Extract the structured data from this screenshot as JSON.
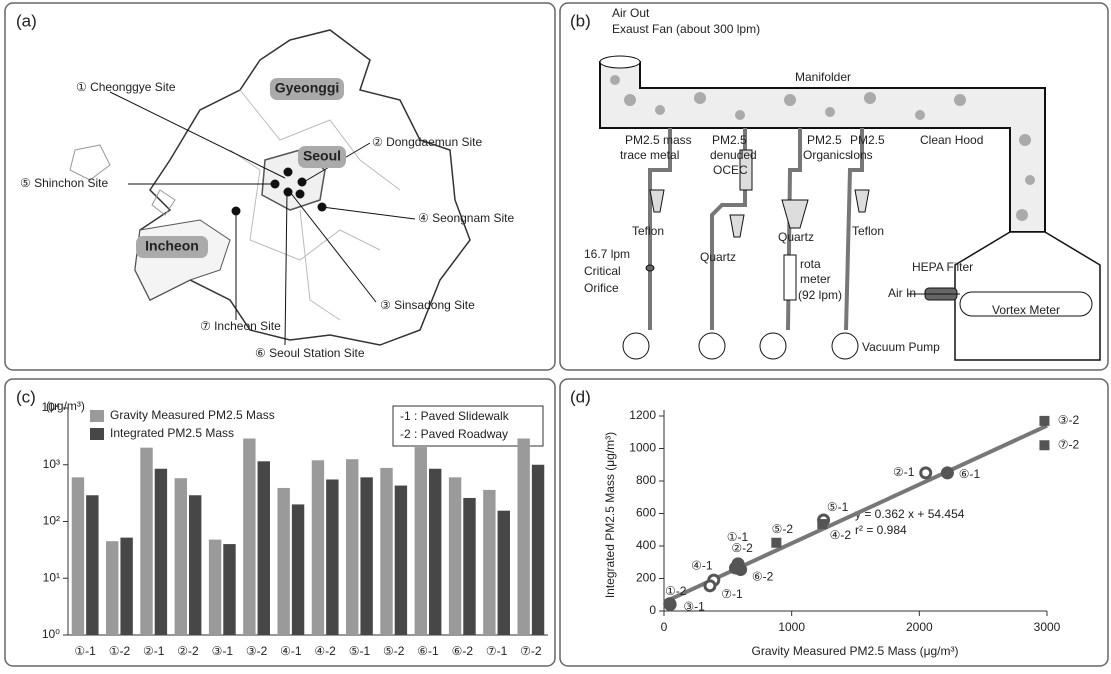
{
  "panel_labels": [
    "(a)",
    "(b)",
    "(c)",
    "(d)"
  ],
  "map": {
    "regions": [
      "Gyeonggi",
      "Seoul",
      "Incheon"
    ],
    "sites": [
      "① Cheonggye Site",
      "② Dongdaemun Site",
      "③ Sinsadong Site",
      "④ Seongnam Site",
      "⑤ Shinchon Site",
      "⑥ Seoul Station Site",
      "⑦ Incheon Site"
    ]
  },
  "setup": {
    "labels": [
      "Air Out",
      "Exaust Fan (about 300 lpm)",
      "Manifolder",
      "PM2.5 mass",
      "trace metal",
      "PM2.5",
      "denuded",
      "OCEC",
      "PM2.5",
      "Organics",
      "PM2.5",
      "Ions",
      "Clean Hood",
      "Teflon",
      "Quartz",
      "Quartz",
      "Teflon",
      "16.7 lpm",
      "Critical",
      "Orifice",
      "rota",
      "meter",
      "(92 lpm)",
      "HEPA Filter",
      "Air In",
      "Vortex Meter",
      "Vacuum Pump"
    ]
  },
  "chart_data": [
    {
      "type": "bar",
      "y_unit_label": "(μg/m³)",
      "categories": [
        "①-1",
        "①-2",
        "②-1",
        "②-2",
        "③-1",
        "③-2",
        "④-1",
        "④-2",
        "⑤-1",
        "⑤-2",
        "⑥-1",
        "⑥-2",
        "⑦-1",
        "⑦-2"
      ],
      "series": [
        {
          "name": "Gravity Measured PM2.5 Mass",
          "color": "#9a9a9a",
          "values": [
            600,
            45,
            2000,
            580,
            48,
            2900,
            390,
            1200,
            1250,
            880,
            2050,
            600,
            360,
            2900
          ]
        },
        {
          "name": "Integrated PM2.5 Mass",
          "color": "#474747",
          "values": [
            290,
            52,
            850,
            290,
            40,
            1150,
            200,
            550,
            600,
            430,
            850,
            260,
            155,
            1000
          ]
        }
      ],
      "log_scale": true,
      "ylim": [
        1,
        10000
      ],
      "yticks": [
        {
          "value": 1,
          "label": "10⁰"
        },
        {
          "value": 10,
          "label": "10¹"
        },
        {
          "value": 100,
          "label": "10²"
        },
        {
          "value": 1000,
          "label": "10³"
        },
        {
          "value": 10000,
          "label": "10⁴"
        }
      ],
      "annotations": [
        "-1 : Paved Slidewalk",
        "-2 : Paved Roadway"
      ]
    },
    {
      "type": "scatter",
      "xlabel": "Gravity Measured PM2.5 Mass (μg/m³)",
      "ylabel": "Integrated PM2.5 Mass (μg/m³)",
      "x": [
        45,
        48,
        390,
        360,
        560,
        580,
        600,
        880,
        1250,
        1240,
        2050,
        2220,
        2980,
        2980
      ],
      "series": [
        {
          "color": "#555555",
          "values": [
            45,
            40,
            190,
            155,
            265,
            290,
            255,
            420,
            560,
            535,
            850,
            850,
            1170,
            1020
          ],
          "markers": [
            "filled",
            "filled",
            "open",
            "open",
            "filled",
            "filled",
            "filled",
            "square",
            "open",
            "square",
            "open",
            "filled",
            "square",
            "square"
          ],
          "point_labels": [
            "①-2",
            "③-1",
            "④-1",
            "⑦-1",
            "①-1",
            "②-2",
            "⑥-2",
            "⑤-2",
            "⑤-1",
            "④-2",
            "②-1",
            "⑥-1",
            "③-2",
            "⑦-2"
          ]
        }
      ],
      "fit": {
        "slope": 0.362,
        "intercept": 54.454,
        "color": "#777777"
      },
      "annotations": [
        "y = 0.362 x + 54.454",
        "r² = 0.984"
      ],
      "xlim": [
        0,
        3000
      ],
      "xticks": [
        0,
        1000,
        2000,
        3000
      ],
      "ylim": [
        0,
        1200
      ],
      "yticks": [
        0,
        200,
        400,
        600,
        800,
        1000,
        1200
      ]
    }
  ]
}
